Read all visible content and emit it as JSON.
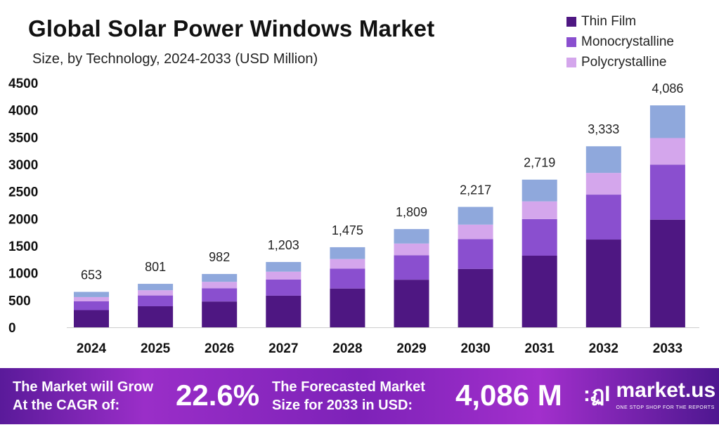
{
  "chart_data": {
    "type": "bar",
    "stacked": true,
    "title": "Global Solar Power Windows Market",
    "subtitle": "Size, by Technology, 2024-2033 (USD Million)",
    "categories": [
      "2024",
      "2025",
      "2026",
      "2027",
      "2028",
      "2029",
      "2030",
      "2031",
      "2032",
      "2033"
    ],
    "series": [
      {
        "name": "Thin Film",
        "color": "#4e1782",
        "values": [
          317,
          388,
          476,
          583,
          715,
          877,
          1075,
          1319,
          1616,
          1982
        ]
      },
      {
        "name": "Monocrystalline",
        "color": "#8a4fcf",
        "values": [
          162,
          199,
          244,
          298,
          366,
          449,
          550,
          674,
          827,
          1013
        ]
      },
      {
        "name": "Polycrystalline",
        "color": "#d4a6ec",
        "values": [
          78,
          96,
          118,
          144,
          177,
          217,
          266,
          326,
          400,
          490
        ]
      },
      {
        "color": "#8fa8dc",
        "values": [
          96,
          118,
          144,
          178,
          217,
          266,
          326,
          400,
          490,
          601
        ]
      }
    ],
    "totals": [
      "653",
      "801",
      "982",
      "1,203",
      "1,475",
      "1,809",
      "2,217",
      "2,719",
      "3,333",
      "4,086"
    ],
    "yticks": [
      "0",
      "500",
      "1000",
      "1500",
      "2000",
      "2500",
      "3000",
      "3500",
      "4000",
      "4500"
    ],
    "ylim": [
      0,
      4500
    ],
    "grid": false,
    "legend": "top-right"
  },
  "footer": {
    "cagr_label_1": "The Market will Grow",
    "cagr_label_2": "At the CAGR of:",
    "cagr_value": "22.6%",
    "forecast_label_1": "The Forecasted Market",
    "forecast_label_2": "Size for 2033 in USD:",
    "forecast_value": "4,086 M",
    "logo_name": "market.us",
    "logo_tagline": "ONE STOP SHOP FOR THE REPORTS"
  }
}
